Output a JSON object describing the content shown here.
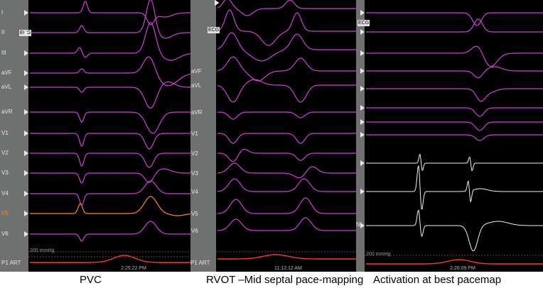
{
  "panels": [
    {
      "caption": "PVC",
      "leads": [
        "I",
        "II",
        "III",
        "aVF",
        "aVL",
        "aVR",
        "V1",
        "V2",
        "V3",
        "V4",
        "V5",
        "V6"
      ],
      "highlighted_lead": "V5",
      "pressure_label": "P1 ART",
      "pressure_scale": "200 mmHg",
      "timestamp": "2:25:22 PM",
      "trace_color": "#d040d8",
      "highlight_color": "#ff8a1e"
    },
    {
      "caption": "RVOT –Mid septal pace-mapping",
      "leads": [
        "aVF",
        "aVL",
        "aVR",
        "V1",
        "V2",
        "V3",
        "V4",
        "V5",
        "V6"
      ],
      "pressure_label": "P1 ART",
      "timestamp": "11:12:12 AM",
      "trace_color": "#d040d8"
    },
    {
      "caption": "Activation at best pacemap",
      "leads": [
        "NI"
      ],
      "pressure_scale": "200 mmHg",
      "timestamp": "2:26:09 PM",
      "trace_color": "#d040d8",
      "intracardiac_color": "#f0f0f0"
    }
  ],
  "gain_badge": "ECG",
  "pressure_color": "#ff3a1e"
}
